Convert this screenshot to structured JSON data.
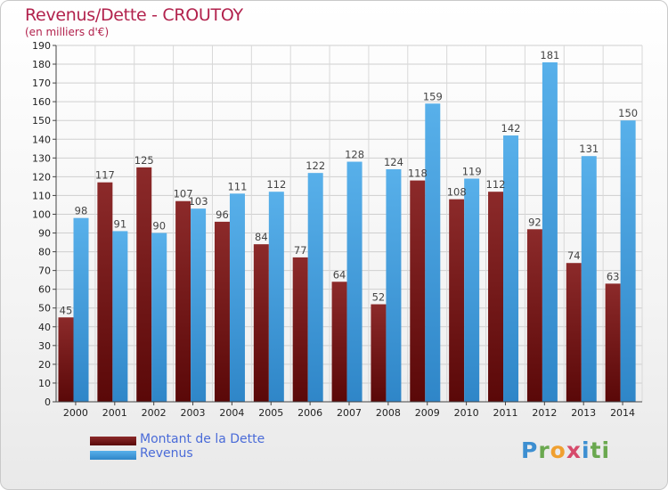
{
  "header": {
    "title": "Revenus/Dette - CROUTOY",
    "subtitle": "(en milliers d'€)"
  },
  "chart_data": {
    "type": "bar",
    "categories": [
      "2000",
      "2001",
      "2002",
      "2003",
      "2004",
      "2005",
      "2006",
      "2007",
      "2008",
      "2009",
      "2010",
      "2011",
      "2012",
      "2013",
      "2014"
    ],
    "series": [
      {
        "name": "Montant de la Dette",
        "values": [
          45,
          117,
          125,
          107,
          96,
          84,
          77,
          64,
          52,
          118,
          108,
          112,
          92,
          74,
          63
        ],
        "color": "#7a1414"
      },
      {
        "name": "Revenus",
        "values": [
          98,
          91,
          90,
          103,
          111,
          112,
          122,
          128,
          124,
          159,
          119,
          142,
          181,
          131,
          150
        ],
        "color": "#4ba3e3"
      }
    ],
    "ylim": [
      0,
      190
    ],
    "yticks": [
      0,
      10,
      20,
      30,
      40,
      50,
      60,
      70,
      80,
      90,
      100,
      110,
      120,
      130,
      140,
      150,
      160,
      170,
      180,
      190
    ],
    "grid": true,
    "legend_position": "bottom-left"
  },
  "logo": {
    "letters": [
      "P",
      "r",
      "o",
      "x",
      "i",
      "ti"
    ]
  }
}
